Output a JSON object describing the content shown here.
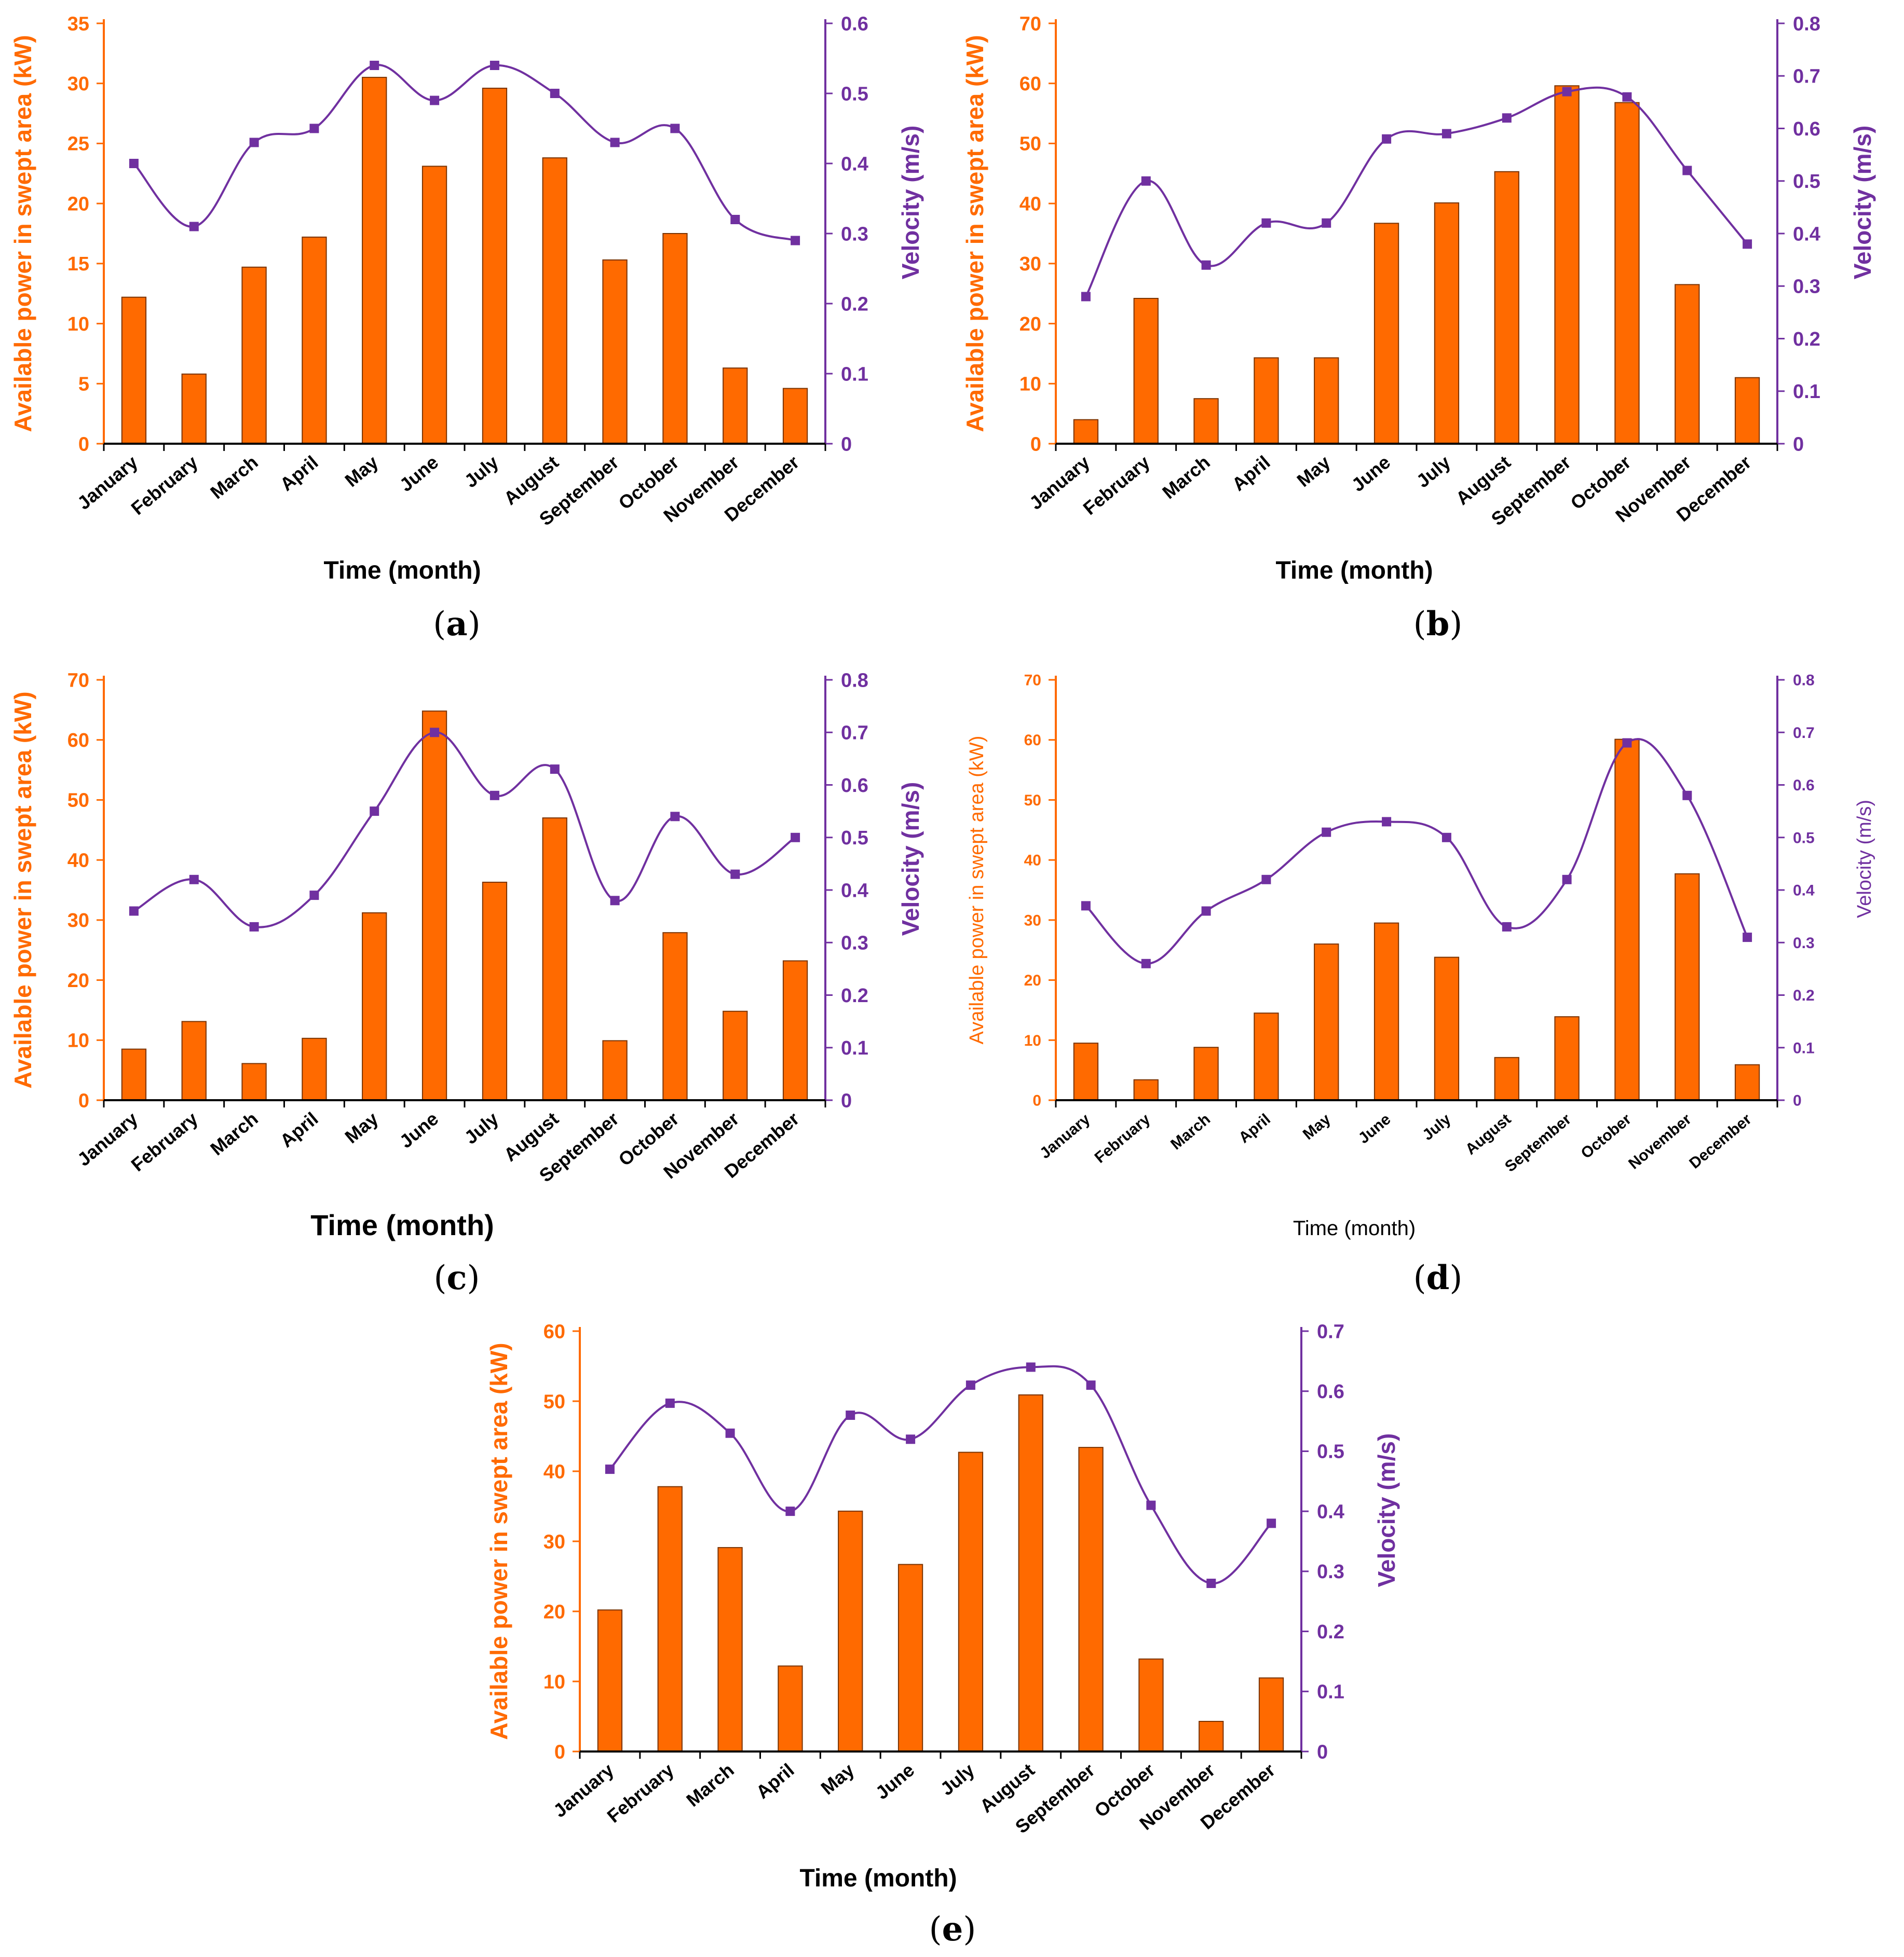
{
  "colors": {
    "bars": "#FF6A00",
    "bar_stroke": "#7a3300",
    "line": "#7030A0",
    "axis_text": "#000000"
  },
  "charts": [
    {
      "id": "a",
      "caption": "a",
      "type": "bar",
      "ylabel": "Available power in swept area (kW)",
      "y2label": "Velocity (m/s)",
      "xlabel": "Time (month)",
      "categories": [
        "January",
        "February",
        "March",
        "April",
        "May",
        "June",
        "July",
        "August",
        "September",
        "October",
        "November",
        "December"
      ],
      "ylim": [
        0,
        35
      ],
      "yticks": [
        0,
        5,
        10,
        15,
        20,
        25,
        30,
        35
      ],
      "y2lim": [
        0,
        0.6
      ],
      "y2ticks": [
        "0",
        "0.1",
        "0.2",
        "0.3",
        "0.4",
        "0.5",
        "0.6"
      ],
      "series": [
        {
          "axis": "left",
          "kind": "bar",
          "values": [
            12.2,
            5.8,
            14.7,
            17.2,
            30.5,
            23.1,
            29.6,
            23.8,
            15.3,
            17.5,
            6.3,
            4.6
          ]
        },
        {
          "axis": "right",
          "kind": "line",
          "values": [
            0.4,
            0.31,
            0.43,
            0.45,
            0.54,
            0.49,
            0.54,
            0.5,
            0.43,
            0.45,
            0.32,
            0.29
          ]
        }
      ]
    },
    {
      "id": "b",
      "caption": "b",
      "type": "bar",
      "ylabel": "Available power in swept area (kW)",
      "y2label": "Velocity (m/s)",
      "xlabel": "Time (month)",
      "categories": [
        "January",
        "February",
        "March",
        "April",
        "May",
        "June",
        "July",
        "August",
        "September",
        "October",
        "November",
        "December"
      ],
      "ylim": [
        0,
        70
      ],
      "yticks": [
        0,
        10,
        20,
        30,
        40,
        50,
        60,
        70
      ],
      "y2lim": [
        0,
        0.8
      ],
      "y2ticks": [
        "0",
        "0.1",
        "0.2",
        "0.3",
        "0.4",
        "0.5",
        "0.6",
        "0.7",
        "0.8"
      ],
      "series": [
        {
          "axis": "left",
          "kind": "bar",
          "values": [
            4.0,
            24.2,
            7.5,
            14.3,
            14.3,
            36.7,
            40.1,
            45.3,
            59.6,
            56.8,
            26.5,
            11.0
          ]
        },
        {
          "axis": "right",
          "kind": "line",
          "values": [
            0.28,
            0.5,
            0.34,
            0.42,
            0.42,
            0.58,
            0.59,
            0.62,
            0.67,
            0.66,
            0.52,
            0.38
          ]
        }
      ]
    },
    {
      "id": "c",
      "caption": "c",
      "type": "bar",
      "ylabel": "Available power in swept area (kW)",
      "y2label": "Velocity (m/s)",
      "xlabel": "Time (month)",
      "categories": [
        "January",
        "February",
        "March",
        "April",
        "May",
        "June",
        "July",
        "August",
        "September",
        "October",
        "November",
        "December"
      ],
      "ylim": [
        0,
        70
      ],
      "yticks": [
        0,
        10,
        20,
        30,
        40,
        50,
        60,
        70
      ],
      "y2lim": [
        0,
        0.8
      ],
      "y2ticks": [
        "0",
        "0.1",
        "0.2",
        "0.3",
        "0.4",
        "0.5",
        "0.6",
        "0.7",
        "0.8"
      ],
      "series": [
        {
          "axis": "left",
          "kind": "bar",
          "values": [
            8.5,
            13.1,
            6.1,
            10.3,
            31.2,
            64.8,
            36.3,
            47.0,
            9.9,
            27.9,
            14.8,
            23.2
          ]
        },
        {
          "axis": "right",
          "kind": "line",
          "values": [
            0.36,
            0.42,
            0.33,
            0.39,
            0.55,
            0.7,
            0.58,
            0.63,
            0.38,
            0.54,
            0.43,
            0.5
          ]
        }
      ]
    },
    {
      "id": "d",
      "caption": "d",
      "type": "bar",
      "ylabel": "Available power in swept area (kW)",
      "y2label": "Velocity (m/s)",
      "xlabel": "Time (month)",
      "categories": [
        "January",
        "February",
        "March",
        "April",
        "May",
        "June",
        "July",
        "August",
        "September",
        "October",
        "November",
        "December"
      ],
      "ylim": [
        0,
        70
      ],
      "yticks": [
        0,
        10,
        20,
        30,
        40,
        50,
        60,
        70
      ],
      "y2lim": [
        0,
        0.8
      ],
      "y2ticks": [
        "0",
        "0.1",
        "0.2",
        "0.3",
        "0.4",
        "0.5",
        "0.6",
        "0.7",
        "0.8"
      ],
      "series": [
        {
          "axis": "left",
          "kind": "bar",
          "values": [
            9.5,
            3.4,
            8.8,
            14.5,
            26.0,
            29.5,
            23.8,
            7.1,
            13.9,
            60.1,
            37.7,
            5.9
          ]
        },
        {
          "axis": "right",
          "kind": "line",
          "values": [
            0.37,
            0.26,
            0.36,
            0.42,
            0.51,
            0.53,
            0.5,
            0.33,
            0.42,
            0.68,
            0.58,
            0.31
          ]
        }
      ]
    },
    {
      "id": "e",
      "caption": "e",
      "type": "bar",
      "ylabel": "Available power in swept area (kW)",
      "y2label": "Velocity (m/s)",
      "xlabel": "Time (month)",
      "categories": [
        "January",
        "February",
        "March",
        "April",
        "May",
        "June",
        "July",
        "August",
        "September",
        "October",
        "November",
        "December"
      ],
      "ylim": [
        0,
        60
      ],
      "yticks": [
        0,
        10,
        20,
        30,
        40,
        50,
        60
      ],
      "y2lim": [
        0,
        0.7
      ],
      "y2ticks": [
        "0",
        "0.1",
        "0.2",
        "0.3",
        "0.4",
        "0.5",
        "0.6",
        "0.7"
      ],
      "series": [
        {
          "axis": "left",
          "kind": "bar",
          "values": [
            20.2,
            37.8,
            29.1,
            12.2,
            34.3,
            26.7,
            42.7,
            50.9,
            43.4,
            13.2,
            4.3,
            10.5
          ]
        },
        {
          "axis": "right",
          "kind": "line",
          "values": [
            0.47,
            0.58,
            0.53,
            0.4,
            0.56,
            0.52,
            0.61,
            0.64,
            0.61,
            0.41,
            0.28,
            0.38
          ]
        }
      ]
    }
  ]
}
